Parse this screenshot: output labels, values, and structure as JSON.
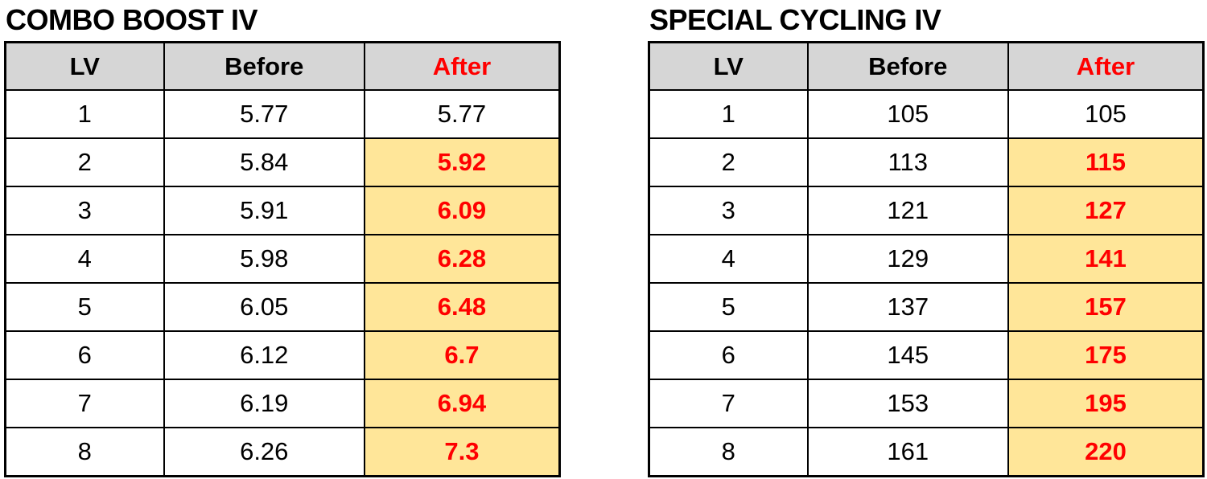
{
  "colors": {
    "header_bg": "#d6d6d6",
    "highlight_bg": "#ffe699",
    "accent_red": "#ff0000",
    "border": "#000000",
    "text": "#000000"
  },
  "tables": [
    {
      "title": "COMBO BOOST IV",
      "headers": {
        "lv": "LV",
        "before": "Before",
        "after": "After"
      },
      "rows": [
        {
          "lv": "1",
          "before": "5.77",
          "after": "5.77",
          "highlight": false
        },
        {
          "lv": "2",
          "before": "5.84",
          "after": "5.92",
          "highlight": true
        },
        {
          "lv": "3",
          "before": "5.91",
          "after": "6.09",
          "highlight": true
        },
        {
          "lv": "4",
          "before": "5.98",
          "after": "6.28",
          "highlight": true
        },
        {
          "lv": "5",
          "before": "6.05",
          "after": "6.48",
          "highlight": true
        },
        {
          "lv": "6",
          "before": "6.12",
          "after": "6.7",
          "highlight": true
        },
        {
          "lv": "7",
          "before": "6.19",
          "after": "6.94",
          "highlight": true
        },
        {
          "lv": "8",
          "before": "6.26",
          "after": "7.3",
          "highlight": true
        }
      ]
    },
    {
      "title": "SPECIAL CYCLING IV",
      "headers": {
        "lv": "LV",
        "before": "Before",
        "after": "After"
      },
      "rows": [
        {
          "lv": "1",
          "before": "105",
          "after": "105",
          "highlight": false
        },
        {
          "lv": "2",
          "before": "113",
          "after": "115",
          "highlight": true
        },
        {
          "lv": "3",
          "before": "121",
          "after": "127",
          "highlight": true
        },
        {
          "lv": "4",
          "before": "129",
          "after": "141",
          "highlight": true
        },
        {
          "lv": "5",
          "before": "137",
          "after": "157",
          "highlight": true
        },
        {
          "lv": "6",
          "before": "145",
          "after": "175",
          "highlight": true
        },
        {
          "lv": "7",
          "before": "153",
          "after": "195",
          "highlight": true
        },
        {
          "lv": "8",
          "before": "161",
          "after": "220",
          "highlight": true
        }
      ]
    }
  ],
  "chart_data": [
    {
      "type": "table",
      "title": "COMBO BOOST IV",
      "columns": [
        "LV",
        "Before",
        "After"
      ],
      "rows": [
        [
          1,
          5.77,
          5.77
        ],
        [
          2,
          5.84,
          5.92
        ],
        [
          3,
          5.91,
          6.09
        ],
        [
          4,
          5.98,
          6.28
        ],
        [
          5,
          6.05,
          6.48
        ],
        [
          6,
          6.12,
          6.7
        ],
        [
          7,
          6.19,
          6.94
        ],
        [
          8,
          6.26,
          7.3
        ]
      ],
      "notes": "After values for LV 2-8 highlighted (yellow bg, bold red text); LV 1 unchanged"
    },
    {
      "type": "table",
      "title": "SPECIAL CYCLING IV",
      "columns": [
        "LV",
        "Before",
        "After"
      ],
      "rows": [
        [
          1,
          105,
          105
        ],
        [
          2,
          113,
          115
        ],
        [
          3,
          121,
          127
        ],
        [
          4,
          129,
          141
        ],
        [
          5,
          137,
          157
        ],
        [
          6,
          145,
          175
        ],
        [
          7,
          153,
          195
        ],
        [
          8,
          161,
          220
        ]
      ],
      "notes": "After values for LV 2-8 highlighted (yellow bg, bold red text); LV 1 unchanged"
    }
  ]
}
